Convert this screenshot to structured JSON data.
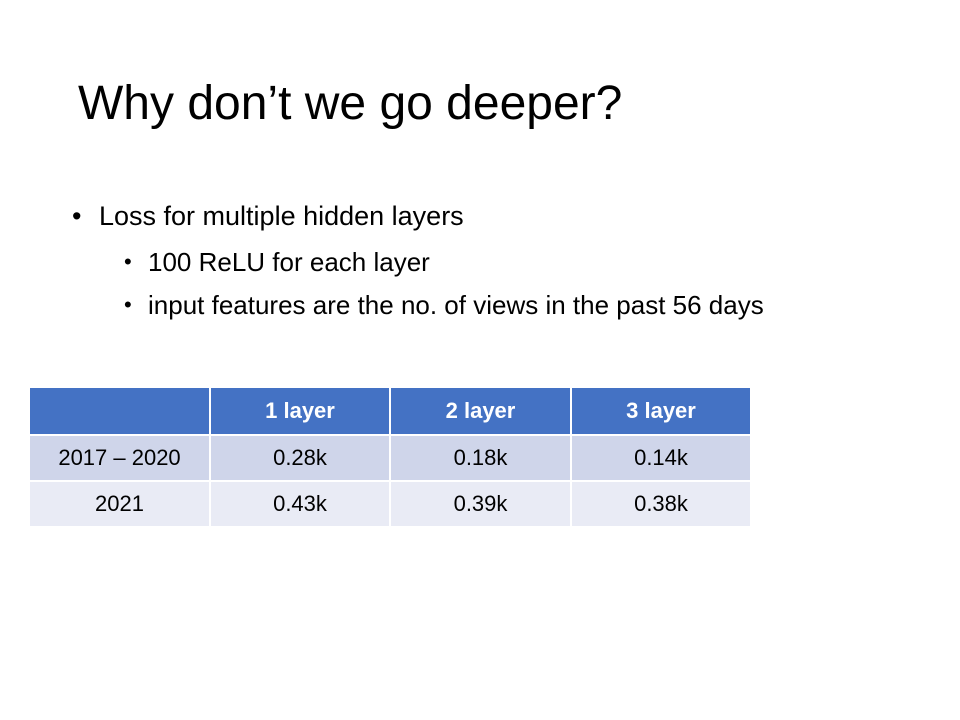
{
  "title": "Why don’t we go deeper?",
  "bullets": {
    "main": "Loss for multiple hidden layers",
    "sub": [
      "100 ReLU for each layer",
      "input features are the no. of views in the past 56 days"
    ]
  },
  "table": {
    "headers": [
      "",
      "1 layer",
      "2 layer",
      "3 layer"
    ],
    "rows": [
      [
        "2017 – 2020",
        "0.28k",
        "0.18k",
        "0.14k"
      ],
      [
        "2021",
        "0.43k",
        "0.39k",
        "0.38k"
      ]
    ],
    "colors": {
      "header_bg": "#4472c4",
      "row_odd_bg": "#cfd5ea",
      "row_even_bg": "#e9ebf5"
    }
  }
}
